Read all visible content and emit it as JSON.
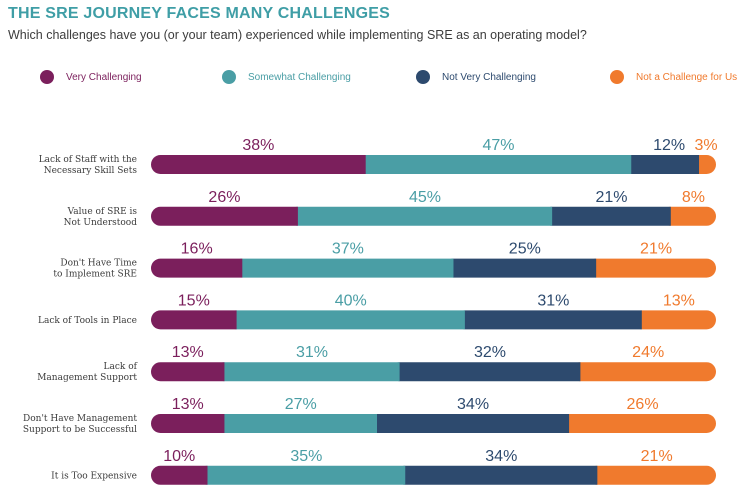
{
  "header": {
    "title": "THE SRE JOURNEY FACES MANY CHALLENGES",
    "subtitle": "Which challenges have you (or your team) experienced while implementing SRE as an operating model?"
  },
  "legend": [
    {
      "label": "Very Challenging",
      "color": "#7b1f5c"
    },
    {
      "label": "Somewhat Challenging",
      "color": "#4a9ea5"
    },
    {
      "label": "Not Very Challenging",
      "color": "#2d4a6e"
    },
    {
      "label": "Not a Challenge for Us",
      "color": "#f07a2d"
    }
  ],
  "chart_data": {
    "type": "bar",
    "orientation": "horizontal",
    "stacked": true,
    "title": "THE SRE JOURNEY FACES MANY CHALLENGES",
    "subtitle": "Which challenges have you (or your team) experienced while implementing SRE as an operating model?",
    "unit": "%",
    "categories": [
      [
        "Lack of Staff with the",
        "Necessary Skill Sets"
      ],
      [
        "Value of SRE is",
        "Not Understood"
      ],
      [
        "Don't Have Time",
        "to Implement SRE"
      ],
      [
        "Lack of Tools in Place"
      ],
      [
        "Lack of",
        "Management Support"
      ],
      [
        "Don't Have Management",
        "Support to be Successful"
      ],
      [
        "It is Too Expensive"
      ]
    ],
    "series": [
      {
        "name": "Very Challenging",
        "color": "#7b1f5c",
        "values": [
          38,
          26,
          16,
          15,
          13,
          13,
          10
        ]
      },
      {
        "name": "Somewhat Challenging",
        "color": "#4a9ea5",
        "values": [
          47,
          45,
          37,
          40,
          31,
          27,
          35
        ]
      },
      {
        "name": "Not Very Challenging",
        "color": "#2d4a6e",
        "values": [
          12,
          21,
          25,
          31,
          32,
          34,
          34
        ]
      },
      {
        "name": "Not a Challenge for Us",
        "color": "#f07a2d",
        "values": [
          3,
          8,
          21,
          13,
          24,
          26,
          21
        ]
      }
    ],
    "legend_position": "top"
  }
}
